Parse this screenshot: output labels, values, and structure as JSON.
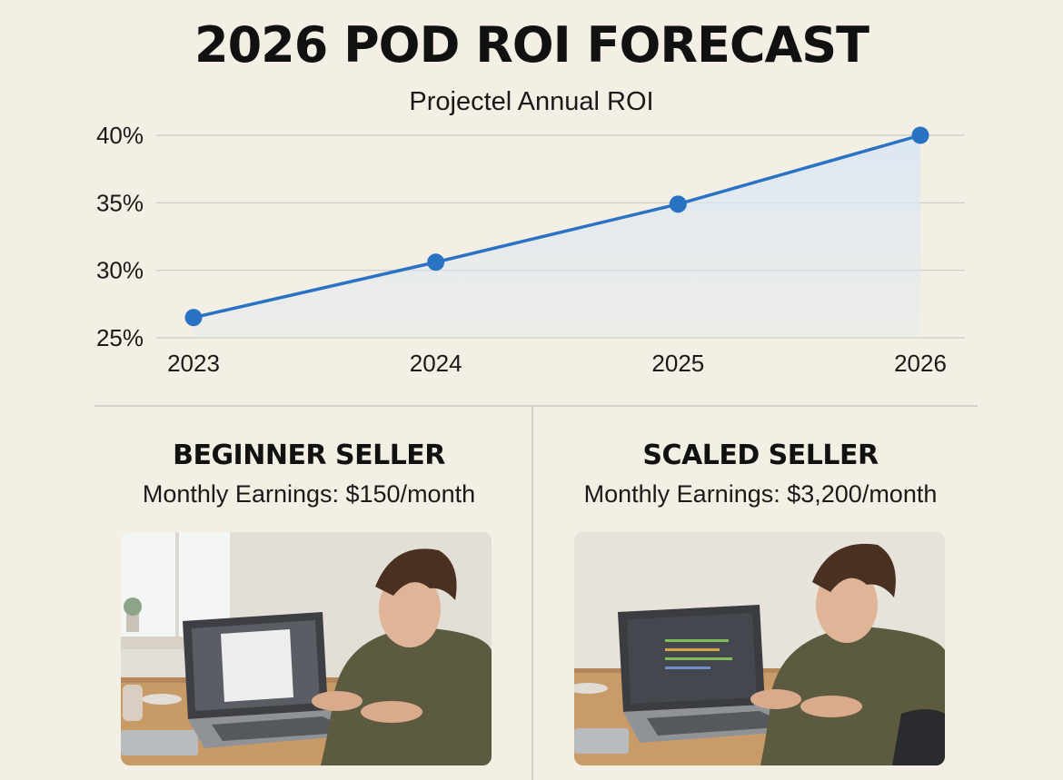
{
  "title": "2026 POD ROI FORECAST",
  "chart_data": {
    "type": "line",
    "title": "Projectel Annual ROI",
    "x": [
      "2023",
      "2024",
      "2025",
      "2026"
    ],
    "series": [
      {
        "values": [
          26.5,
          30.6,
          34.9,
          40.0
        ]
      }
    ],
    "ylim": [
      25,
      40
    ],
    "yticks": [
      25,
      30,
      35,
      40
    ],
    "ytick_labels": [
      "25%",
      "30%",
      "35%",
      "40%"
    ],
    "grid": true,
    "line_color": "#2a72c4",
    "fill_color": "#dce7f3"
  },
  "panels": [
    {
      "heading": "BEGINNER SELLER",
      "subtitle": "Monthly Earnings: $150/month",
      "image": "man-at-laptop-photo"
    },
    {
      "heading": "SCALED SELLER",
      "subtitle": "Monthly Earnings: $3,200/month",
      "image": "man-at-laptop-dark-screen-photo"
    }
  ]
}
